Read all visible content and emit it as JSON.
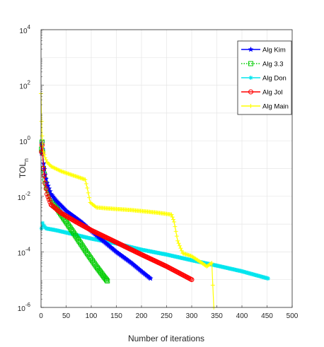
{
  "chart_data": {
    "type": "line",
    "xlabel": "Number of iterations",
    "ylabel": "TOL",
    "ylabel_subscript": "n",
    "xlim": [
      0,
      500
    ],
    "ylim": [
      1e-06,
      10000.0
    ],
    "yscale": "log",
    "grid": true,
    "legend_position": "top-right",
    "x_ticks": [
      0,
      50,
      100,
      150,
      200,
      250,
      300,
      350,
      400,
      450,
      500
    ],
    "x_tick_labels": [
      "0",
      "50",
      "100",
      "150",
      "200",
      "250",
      "300",
      "350",
      "400",
      "450",
      "500"
    ],
    "y_ticks": [
      1e-06,
      0.0001,
      0.01,
      1.0,
      100.0,
      10000.0
    ],
    "y_tick_labels": [
      {
        "base": "10",
        "exp": "-6"
      },
      {
        "base": "10",
        "exp": "-4"
      },
      {
        "base": "10",
        "exp": "-2"
      },
      {
        "base": "10",
        "exp": "0"
      },
      {
        "base": "10",
        "exp": "2"
      },
      {
        "base": "10",
        "exp": "4"
      }
    ],
    "series": [
      {
        "name": "Alg Kim",
        "color": "#0000ff",
        "marker": "star",
        "line": "solid",
        "x": [
          1,
          2,
          3,
          5,
          8,
          12,
          20,
          30,
          50,
          80,
          110,
          150,
          180,
          200,
          218
        ],
        "y": [
          0.35,
          0.8,
          0.5,
          0.15,
          0.06,
          0.03,
          0.012,
          0.007,
          0.003,
          0.0012,
          0.0004,
          0.0001,
          4e-05,
          2e-05,
          1.1e-05
        ]
      },
      {
        "name": "Alg 3.3",
        "color": "#00cc00",
        "marker": "square",
        "line": "dotted",
        "x": [
          1,
          2,
          3,
          5,
          8,
          12,
          20,
          35,
          50,
          70,
          90,
          110,
          125,
          132
        ],
        "y": [
          0.5,
          0.9,
          0.4,
          0.1,
          0.04,
          0.02,
          0.008,
          0.003,
          0.0012,
          0.00035,
          0.0001,
          3e-05,
          1.3e-05,
          9e-06
        ]
      },
      {
        "name": "Alg Don",
        "color": "#00e5ee",
        "marker": "asterisk",
        "line": "solid",
        "x": [
          1,
          3,
          5,
          10,
          30,
          60,
          100,
          150,
          200,
          250,
          300,
          350,
          400,
          452
        ],
        "y": [
          0.0007,
          0.0011,
          0.0009,
          0.0007,
          0.0006,
          0.00045,
          0.0003,
          0.0002,
          0.00012,
          8e-05,
          5e-05,
          3.2e-05,
          2e-05,
          1.1e-05
        ]
      },
      {
        "name": "Alg Jol",
        "color": "#ff0000",
        "marker": "circle",
        "line": "solid",
        "x": [
          1,
          2,
          3,
          5,
          8,
          12,
          20,
          40,
          70,
          100,
          150,
          200,
          250,
          300
        ],
        "y": [
          0.4,
          0.7,
          0.35,
          0.1,
          0.03,
          0.012,
          0.005,
          0.0025,
          0.0012,
          0.0006,
          0.00022,
          8e-05,
          3e-05,
          1e-05
        ]
      },
      {
        "name": "Alg Main",
        "color": "#ffff00",
        "marker": "plus",
        "line": "solid",
        "x": [
          0,
          1,
          2,
          3,
          5,
          8,
          12,
          20,
          40,
          60,
          80,
          88,
          92,
          98,
          110,
          130,
          180,
          230,
          260,
          265,
          272,
          282,
          300,
          320,
          330,
          340,
          344
        ],
        "y": [
          50,
          5,
          1.5,
          0.8,
          0.4,
          0.25,
          0.17,
          0.12,
          0.08,
          0.06,
          0.045,
          0.04,
          0.02,
          0.006,
          0.004,
          0.0037,
          0.0032,
          0.0026,
          0.0022,
          0.0012,
          0.00025,
          9e-05,
          7e-05,
          4e-05,
          3e-05,
          4e-05,
          1e-06
        ]
      }
    ]
  }
}
